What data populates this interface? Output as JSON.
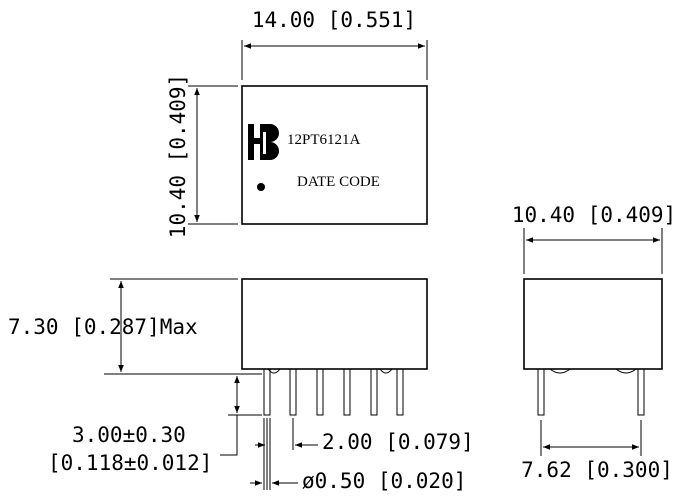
{
  "colors": {
    "ink": "#000000",
    "background": "#ffffff"
  },
  "top_view": {
    "width_label": "14.00 [0.551]",
    "height_label": "10.40 [0.409]",
    "part_number": "12PT6121A",
    "date_code": "DATE CODE",
    "logo_icon": "hb-logo-icon"
  },
  "front_view": {
    "height_label": "7.30 [0.287]Max",
    "pin_length_label_line1": "3.00±0.30",
    "pin_length_label_line2": "[0.118±0.012]",
    "pin_pitch_label": "2.00 [0.079]",
    "pin_diameter_label": "ø0.50 [0.020]"
  },
  "side_view": {
    "width_label": "10.40 [0.409]",
    "pin_spacing_label": "7.62 [0.300]"
  }
}
